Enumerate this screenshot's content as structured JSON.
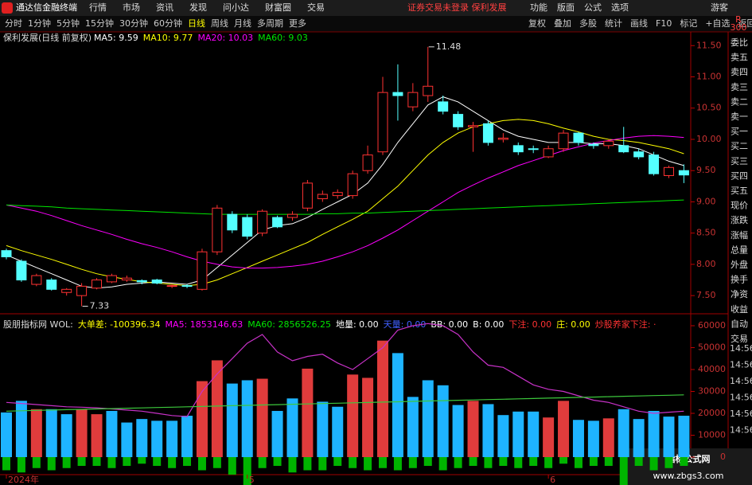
{
  "menu": {
    "app": "通达信金融终端",
    "items": [
      "行情",
      "市场",
      "资讯",
      "发现",
      "问小达",
      "财富圈",
      "交易"
    ],
    "notice": "证券交易未登录  保利发展",
    "right": [
      "功能",
      "版面",
      "公式",
      "选项"
    ],
    "user": "游客"
  },
  "toolbar": {
    "periods": [
      "分时",
      "1分钟",
      "5分钟",
      "15分钟",
      "30分钟",
      "60分钟",
      "日线",
      "周线",
      "月线",
      "多周期",
      "更多"
    ],
    "active": 6,
    "tools": [
      "复权",
      "叠加",
      "多股",
      "统计",
      "画线",
      "F10",
      "标记",
      "+自选",
      "返回"
    ],
    "corner": [
      "R",
      "300"
    ]
  },
  "side_panel": {
    "labels": [
      "委比",
      "卖五",
      "卖四",
      "卖三",
      "卖二",
      "卖一",
      "买一",
      "买二",
      "买三",
      "买四",
      "买五",
      "现价",
      "涨跌",
      "涨幅",
      "总量",
      "外盘",
      "换手",
      "净资",
      "收益",
      "自动",
      "交易"
    ],
    "times": [
      "14:56",
      "14:56",
      "14:56",
      "14:56",
      "14:56",
      "14:56"
    ]
  },
  "watermark": {
    "title": "指标公式网",
    "url": "www.zbgs3.com"
  },
  "chart_data": [
    {
      "type": "candlestick",
      "title": "保利发展(日线 前复权)",
      "open": [
        8.22,
        8.05,
        7.68,
        7.75,
        7.55,
        7.5,
        7.62,
        7.72,
        7.75,
        7.74,
        7.75,
        7.65,
        7.66,
        7.6,
        8.2,
        8.8,
        8.75,
        8.5,
        8.75,
        8.75,
        8.9,
        9.05,
        9.1,
        9.1,
        9.5,
        9.8,
        10.75,
        10.52,
        10.7,
        10.6,
        10.4,
        10.2,
        10.25,
        10.0,
        9.9,
        9.85,
        9.72,
        9.85,
        10.1,
        9.92,
        9.9,
        9.9,
        9.8,
        9.75,
        9.42,
        9.5
      ],
      "high": [
        8.25,
        8.08,
        7.85,
        7.78,
        7.62,
        7.7,
        7.78,
        7.85,
        7.82,
        7.76,
        7.77,
        7.68,
        7.68,
        8.25,
        8.95,
        8.85,
        8.8,
        8.88,
        8.78,
        8.85,
        9.35,
        9.18,
        9.2,
        9.5,
        9.9,
        11.0,
        11.2,
        10.9,
        11.48,
        10.7,
        10.45,
        10.28,
        10.3,
        10.1,
        9.95,
        9.9,
        9.9,
        10.15,
        10.12,
        9.95,
        10.0,
        10.2,
        9.85,
        9.8,
        9.58,
        9.6
      ],
      "low": [
        8.08,
        7.72,
        7.65,
        7.58,
        7.5,
        7.33,
        7.6,
        7.7,
        7.72,
        7.68,
        7.68,
        7.62,
        7.62,
        7.58,
        8.15,
        8.5,
        8.4,
        8.45,
        8.58,
        8.7,
        8.85,
        9.0,
        9.05,
        9.05,
        9.45,
        9.75,
        10.3,
        10.45,
        10.6,
        10.4,
        10.15,
        9.8,
        9.9,
        9.95,
        9.75,
        9.78,
        9.7,
        9.8,
        9.9,
        9.85,
        9.85,
        9.78,
        9.68,
        9.42,
        9.38,
        9.3
      ],
      "close": [
        8.12,
        7.75,
        7.82,
        7.6,
        7.6,
        7.65,
        7.75,
        7.82,
        7.78,
        7.72,
        7.7,
        7.66,
        7.65,
        8.2,
        8.9,
        8.55,
        8.45,
        8.85,
        8.6,
        8.8,
        9.3,
        9.12,
        9.15,
        9.45,
        9.75,
        10.75,
        10.7,
        10.75,
        10.85,
        10.45,
        10.2,
        10.22,
        9.95,
        10.02,
        9.8,
        9.84,
        9.85,
        10.1,
        9.95,
        9.9,
        9.97,
        9.8,
        9.72,
        9.45,
        9.55,
        9.43
      ],
      "up_color": "#ff3232",
      "down_color": "#54ffff",
      "series": [
        {
          "name": "MA5: 9.59",
          "color": "#ffffff",
          "values": [
            8.15,
            8.05,
            7.95,
            7.85,
            7.75,
            7.65,
            7.62,
            7.64,
            7.68,
            7.7,
            7.72,
            7.7,
            7.68,
            7.75,
            7.95,
            8.15,
            8.35,
            8.55,
            8.62,
            8.65,
            8.75,
            8.88,
            9.0,
            9.12,
            9.3,
            9.6,
            9.95,
            10.25,
            10.55,
            10.68,
            10.6,
            10.45,
            10.3,
            10.15,
            10.05,
            10.0,
            9.95,
            9.95,
            9.95,
            9.93,
            9.93,
            9.9,
            9.85,
            9.75,
            9.65,
            9.58
          ]
        },
        {
          "name": "MA10: 9.77",
          "color": "#ffff00",
          "values": [
            8.3,
            8.22,
            8.15,
            8.08,
            8.0,
            7.92,
            7.85,
            7.8,
            7.76,
            7.72,
            7.7,
            7.68,
            7.66,
            7.68,
            7.75,
            7.85,
            7.95,
            8.05,
            8.15,
            8.25,
            8.35,
            8.48,
            8.6,
            8.72,
            8.85,
            9.05,
            9.25,
            9.5,
            9.75,
            9.95,
            10.1,
            10.2,
            10.25,
            10.3,
            10.32,
            10.3,
            10.25,
            10.18,
            10.12,
            10.05,
            10.0,
            9.98,
            9.95,
            9.9,
            9.85,
            9.77
          ]
        },
        {
          "name": "MA20: 10.03",
          "color": "#ff00ff",
          "values": [
            8.95,
            8.9,
            8.85,
            8.78,
            8.7,
            8.62,
            8.55,
            8.48,
            8.4,
            8.33,
            8.27,
            8.2,
            8.12,
            8.05,
            8.0,
            7.96,
            7.94,
            7.94,
            7.95,
            7.97,
            8.0,
            8.05,
            8.12,
            8.2,
            8.3,
            8.42,
            8.55,
            8.7,
            8.85,
            9.0,
            9.15,
            9.27,
            9.38,
            9.48,
            9.58,
            9.66,
            9.74,
            9.82,
            9.88,
            9.94,
            9.98,
            10.02,
            10.05,
            10.06,
            10.05,
            10.03
          ]
        },
        {
          "name": "MA60: 9.03",
          "color": "#00e600",
          "values": [
            8.95,
            8.94,
            8.93,
            8.92,
            8.9,
            8.89,
            8.88,
            8.87,
            8.86,
            8.85,
            8.84,
            8.83,
            8.82,
            8.81,
            8.8,
            8.8,
            8.8,
            8.8,
            8.8,
            8.8,
            8.8,
            8.81,
            8.81,
            8.82,
            8.82,
            8.83,
            8.84,
            8.85,
            8.86,
            8.87,
            8.88,
            8.89,
            8.9,
            8.91,
            8.92,
            8.93,
            8.94,
            8.95,
            8.96,
            8.97,
            8.98,
            8.99,
            9.0,
            9.01,
            9.02,
            9.03
          ]
        }
      ],
      "annotations": [
        {
          "index": 28,
          "y": 11.48
        },
        {
          "index": 5,
          "y": 7.33
        }
      ],
      "ylim": [
        7.26,
        11.72
      ],
      "yticks": [
        {
          "value": 7.5,
          "label": "7.50"
        },
        {
          "value": 8,
          "label": "8.00"
        },
        {
          "value": 8.5,
          "label": "8.50"
        },
        {
          "value": 9,
          "label": "9.00"
        },
        {
          "value": 9.5,
          "label": "9.50"
        },
        {
          "value": 10,
          "label": "10.00"
        },
        {
          "value": 10.5,
          "label": "10.50"
        },
        {
          "value": 11,
          "label": "11.00"
        },
        {
          "value": 11.5,
          "label": "11.50"
        }
      ]
    },
    {
      "type": "bar",
      "title": "股朋指标网 WOL:",
      "header": [
        {
          "text": "大单差: -100396.34",
          "color": "#ffff00"
        },
        {
          "text": "MA5: 1853146.63",
          "color": "#ff00ff"
        },
        {
          "text": "MA60: 2856526.25",
          "color": "#00e600"
        },
        {
          "text": "地量: 0.00",
          "color": "#ffffff"
        },
        {
          "text": "天量: 0.00",
          "color": "#4060ff"
        },
        {
          "text": "BB: 0.00",
          "color": "#ffffff"
        },
        {
          "text": "B: 0.00",
          "color": "#ffffff"
        },
        {
          "text": "下注: 0.00",
          "color": "#ff3232"
        },
        {
          "text": "庄: 0.00",
          "color": "#ffff00"
        },
        {
          "text": "炒股养家下注: ·",
          "color": "#ff3232"
        }
      ],
      "categories": [
        "2024年",
        null,
        null,
        null,
        null,
        null,
        null,
        null,
        null,
        null,
        null,
        null,
        null,
        null,
        null,
        null,
        "5",
        null,
        null,
        null,
        null,
        null,
        null,
        null,
        null,
        null,
        null,
        null,
        null,
        null,
        null,
        null,
        null,
        null,
        null,
        null,
        "6",
        null,
        null,
        null,
        null,
        null,
        null,
        null,
        null,
        null
      ],
      "values": [
        20400,
        25700,
        21900,
        21900,
        19600,
        21900,
        19600,
        21100,
        15800,
        17400,
        16600,
        16600,
        18900,
        34700,
        44200,
        33600,
        35100,
        35800,
        21100,
        26800,
        40400,
        25300,
        23000,
        37700,
        36200,
        53200,
        47500,
        27500,
        35100,
        32800,
        23800,
        25700,
        24200,
        19200,
        20800,
        20800,
        18100,
        25700,
        17000,
        16600,
        17700,
        21900,
        17400,
        21100,
        18500,
        18900
      ],
      "bar_colors": [
        "#1eb4ff",
        "#1eb4ff",
        "#e03c3c",
        "#1eb4ff",
        "#1eb4ff",
        "#e03c3c",
        "#e03c3c",
        "#1eb4ff",
        "#1eb4ff",
        "#1eb4ff",
        "#1eb4ff",
        "#1eb4ff",
        "#1eb4ff",
        "#e03c3c",
        "#e03c3c",
        "#1eb4ff",
        "#1eb4ff",
        "#e03c3c",
        "#1eb4ff",
        "#1eb4ff",
        "#e03c3c",
        "#1eb4ff",
        "#1eb4ff",
        "#e03c3c",
        "#e03c3c",
        "#e03c3c",
        "#1eb4ff",
        "#1eb4ff",
        "#1eb4ff",
        "#1eb4ff",
        "#1eb4ff",
        "#e03c3c",
        "#1eb4ff",
        "#1eb4ff",
        "#1eb4ff",
        "#1eb4ff",
        "#e03c3c",
        "#e03c3c",
        "#1eb4ff",
        "#1eb4ff",
        "#e03c3c",
        "#1eb4ff",
        "#1eb4ff",
        "#1eb4ff",
        "#1eb4ff",
        "#1eb4ff"
      ],
      "negative": {
        "color": "#00b400",
        "values": [
          -6000,
          -7000,
          -5000,
          -6000,
          -5000,
          -4000,
          -4000,
          -5000,
          -4000,
          -3000,
          -4000,
          -5000,
          -4000,
          -6000,
          -5000,
          -8000,
          -14000,
          -5000,
          -4000,
          -7000,
          -6000,
          -6000,
          -4000,
          -5000,
          -6000,
          -5000,
          -6000,
          -5000,
          -4000,
          -6000,
          -5000,
          -4000,
          -5000,
          -4000,
          -5000,
          -4000,
          -5000,
          -3000,
          -5000,
          -4000,
          -4000,
          -13000,
          -4000,
          -6000,
          -5000,
          -4000
        ]
      },
      "series": [
        {
          "color": "#c832c8",
          "values": [
            25000,
            24500,
            24000,
            23500,
            23000,
            22800,
            22500,
            22000,
            21500,
            21000,
            20000,
            19000,
            18500,
            30000,
            38000,
            45000,
            52000,
            56000,
            48000,
            44000,
            46000,
            47000,
            43000,
            40000,
            45000,
            50000,
            58000,
            60000,
            61000,
            60000,
            56000,
            48000,
            42000,
            41000,
            37000,
            33000,
            31000,
            30000,
            28000,
            26000,
            25000,
            23000,
            21000,
            20000,
            20500,
            21000
          ]
        },
        {
          "color": "#3cc83c",
          "values": [
            21000,
            21165,
            21330,
            21495,
            21660,
            21825,
            21990,
            22155,
            22320,
            22485,
            22650,
            22815,
            22980,
            23145,
            23310,
            23475,
            23640,
            23805,
            23970,
            24135,
            24300,
            24465,
            24630,
            24795,
            24960,
            25125,
            25290,
            25455,
            25620,
            25785,
            25950,
            26115,
            26280,
            26445,
            26610,
            26775,
            26940,
            27105,
            27270,
            27435,
            27600,
            27765,
            27930,
            28095,
            28260,
            28425
          ]
        }
      ],
      "ylim": [
        -8000,
        64000
      ],
      "yticks": [
        0,
        10000,
        20000,
        30000,
        40000,
        50000,
        60000
      ]
    }
  ]
}
